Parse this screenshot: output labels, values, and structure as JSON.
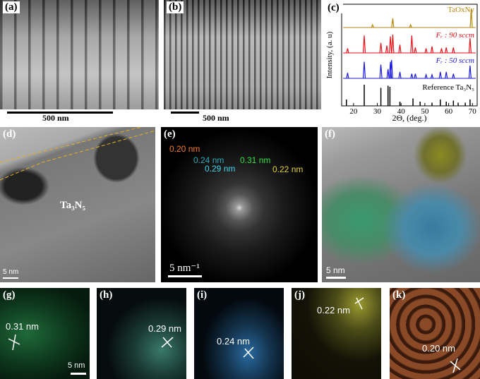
{
  "panels": {
    "a": {
      "label": "(a)",
      "scale_bar": "500 nm"
    },
    "b": {
      "label": "(b)",
      "scale_bar": "500 nm"
    },
    "c": {
      "label": "(c)"
    },
    "d": {
      "label": "(d)",
      "phase": "Ta₃N₅",
      "scale_bar": "5 nm"
    },
    "e": {
      "label": "(e)",
      "scale_bar": "5 nm⁻¹",
      "spots": [
        "0.20 nm",
        "0.24 nm",
        "0.29 nm",
        "0.31 nm",
        "0.22 nm"
      ]
    },
    "f": {
      "label": "(f)",
      "scale_bar": "5 nm"
    },
    "g": {
      "label": "(g)",
      "spacing": "0.31 nm",
      "scale_bar": "5 nm"
    },
    "h": {
      "label": "(h)",
      "spacing": "0.29 nm"
    },
    "i": {
      "label": "(i)",
      "spacing": "0.24 nm"
    },
    "j": {
      "label": "(j)",
      "spacing": "0.22 nm"
    },
    "k": {
      "label": "(k)",
      "spacing": "0.20 nm"
    }
  },
  "chart_data": {
    "type": "line",
    "x_label": "2Θ, (deg.)",
    "y_label": "Intensity, (a. u)",
    "xlim": [
      15,
      72
    ],
    "xticks": [
      20,
      30,
      40,
      50,
      60,
      70
    ],
    "series": [
      {
        "name": "TaOxNy",
        "color": "#b8860b",
        "x": [
          28,
          36.5,
          44,
          69.5
        ],
        "values": [
          0.15,
          0.5,
          0.15,
          1.0
        ]
      },
      {
        "name": "Fᵣ : 90 sccm",
        "color": "#e8121b",
        "x": [
          17.5,
          24.5,
          31.5,
          34,
          35.5,
          36.5,
          39.5,
          44.5,
          46,
          50.5,
          53,
          57,
          59,
          62,
          69
        ],
        "values": [
          0.25,
          0.95,
          0.55,
          0.4,
          0.9,
          1.0,
          0.45,
          0.95,
          0.3,
          0.25,
          0.35,
          0.25,
          0.3,
          0.3,
          0.8
        ]
      },
      {
        "name": "Fᵣ : 50 sccm",
        "color": "#1a1adc",
        "x": [
          17.5,
          24.5,
          31.5,
          34.5,
          35.5,
          36,
          39.5,
          44.5,
          46,
          50.5,
          53,
          56.5,
          59,
          62,
          69
        ],
        "values": [
          0.3,
          0.9,
          0.75,
          0.5,
          0.9,
          1.0,
          0.35,
          0.25,
          0.25,
          0.2,
          0.2,
          0.35,
          0.35,
          0.25,
          0.7
        ]
      },
      {
        "name": "Reference Ta₃N₅",
        "color": "#000000",
        "x": [
          17,
          24.5,
          31.5,
          34.5,
          35.3,
          39.5,
          45,
          48,
          53,
          56.5,
          59,
          62,
          64,
          67,
          69
        ],
        "values": [
          0.3,
          1.0,
          0.85,
          0.95,
          0.9,
          0.2,
          0.35,
          0.2,
          0.15,
          0.3,
          0.2,
          0.25,
          0.15,
          0.15,
          0.3
        ]
      }
    ]
  }
}
